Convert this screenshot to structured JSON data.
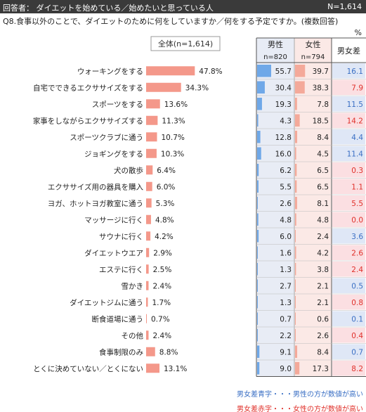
{
  "header": {
    "respondent": "回答者： ダイエットを始めている／始めたいと思っている人",
    "n_total": "N=1,614"
  },
  "question": "Q8.食事以外のことで、ダイエットのために何をしていますか／何をする予定ですか。(複数回答)",
  "unit": "%",
  "chart_data": {
    "type": "bar",
    "total_label": "全体(n=1,614)",
    "categories": [
      "ウォーキングをする",
      "自宅でできるエクササイズをする",
      "スポーツをする",
      "家事をしながらエクササイズする",
      "スポーツクラブに通う",
      "ジョギングをする",
      "犬の散歩",
      "エクササイズ用の器具を購入",
      "ヨガ、ホットヨガ教室に通う",
      "マッサージに行く",
      "サウナに行く",
      "ダイエットウエア",
      "エステに行く",
      "雪かき",
      "ダイエットジムに通う",
      "断食道場に通う",
      "その他",
      "食事制限のみ",
      "とくに決めていない／とくにない"
    ],
    "overall": [
      47.8,
      34.3,
      13.6,
      11.3,
      10.7,
      10.3,
      6.4,
      6.0,
      5.3,
      4.8,
      4.2,
      2.9,
      2.5,
      2.4,
      1.7,
      0.7,
      2.4,
      8.8,
      13.1
    ],
    "columns": {
      "male_header": "男性",
      "male_n": "n=820",
      "female_header": "女性",
      "female_n": "n=794",
      "diff_header": "男女差"
    },
    "male": [
      55.7,
      30.4,
      19.3,
      4.3,
      12.8,
      16.0,
      6.2,
      5.5,
      2.6,
      4.8,
      6.0,
      1.6,
      1.3,
      2.7,
      1.3,
      0.7,
      2.2,
      9.1,
      9.0
    ],
    "female": [
      39.7,
      38.3,
      7.8,
      18.5,
      8.4,
      4.5,
      6.5,
      6.5,
      8.1,
      4.8,
      2.4,
      4.2,
      3.8,
      2.1,
      2.1,
      0.6,
      2.6,
      8.4,
      17.3
    ],
    "diff": [
      "16.1",
      "7.9",
      "11.5",
      "14.2",
      "4.4",
      "11.4",
      "0.3",
      "1.1",
      "5.5",
      "0.0",
      "3.6",
      "2.6",
      "2.4",
      "0.5",
      "0.8",
      "0.1",
      "0.4",
      "0.7",
      "8.2"
    ],
    "colors": {
      "overall_bar": "#f4988a",
      "male_bar": "#6fa8e8",
      "female_bar": "#f4a99a",
      "male_col_bg": "#e8ecf5",
      "female_col_bg": "#fbe9e6",
      "diff_blue_bg": "#dfe7f6",
      "diff_red_bg": "#fbdfe2",
      "diff_blue_text": "#3a6fc4",
      "diff_red_text": "#e0302a"
    }
  },
  "notes": {
    "blue": "男女差青字・・・男性の方が数値が高い",
    "red": "男女差赤字・・・女性の方が数値が高い"
  }
}
